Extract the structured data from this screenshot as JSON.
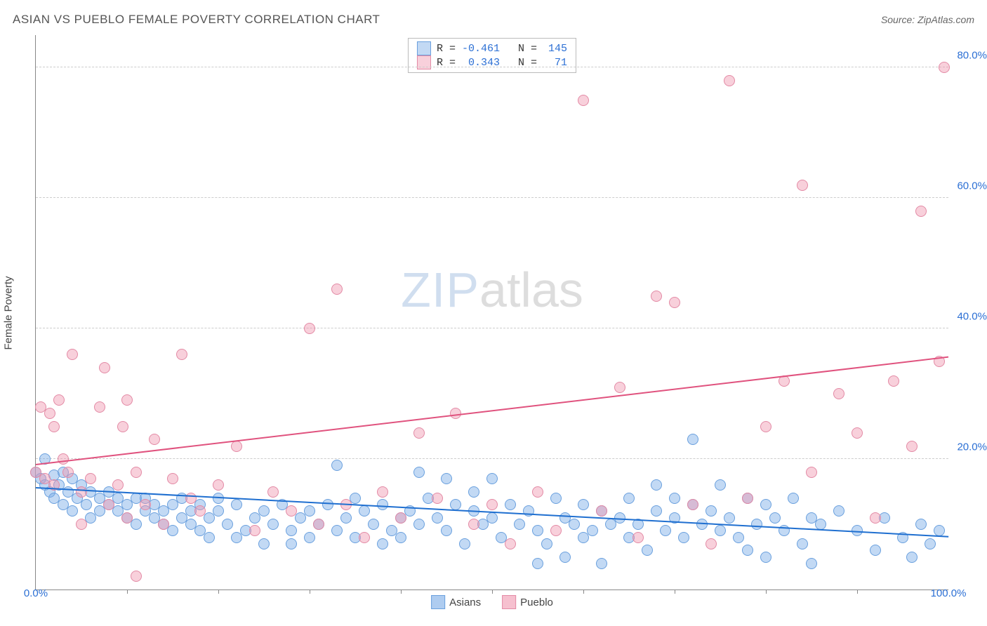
{
  "title": "ASIAN VS PUEBLO FEMALE POVERTY CORRELATION CHART",
  "source": "Source: ZipAtlas.com",
  "watermark": {
    "zip": "ZIP",
    "atlas": "atlas"
  },
  "chart": {
    "type": "scatter",
    "ylabel": "Female Poverty",
    "xlim": [
      0,
      100
    ],
    "ylim": [
      0,
      85
    ],
    "xticks": {
      "min_label": "0.0%",
      "max_label": "100.0%",
      "minor_step": 10
    },
    "yticks": [
      {
        "v": 20,
        "label": "20.0%"
      },
      {
        "v": 40,
        "label": "40.0%"
      },
      {
        "v": 60,
        "label": "60.0%"
      },
      {
        "v": 80,
        "label": "80.0%"
      }
    ],
    "ylabel_color": "#2b6fd4",
    "xlabel_color": "#2b6fd4",
    "grid_color": "#cccccc",
    "axis_color": "#888888",
    "background_color": "#ffffff",
    "marker_radius": 8,
    "marker_border_width": 1.5,
    "series": [
      {
        "name": "Asians",
        "fill": "rgba(120,170,230,0.45)",
        "stroke": "#6aa0de",
        "trend_color": "#1f6fd0",
        "trend": {
          "x1": 0,
          "y1": 15.5,
          "x2": 100,
          "y2": 8.0
        },
        "R": "-0.461",
        "N": "145",
        "points": [
          [
            0,
            18
          ],
          [
            0.5,
            17
          ],
          [
            1,
            20
          ],
          [
            1,
            16
          ],
          [
            1.5,
            15
          ],
          [
            2,
            17.5
          ],
          [
            2,
            14
          ],
          [
            2.5,
            16
          ],
          [
            3,
            18
          ],
          [
            3,
            13
          ],
          [
            3.5,
            15
          ],
          [
            4,
            17
          ],
          [
            4,
            12
          ],
          [
            4.5,
            14
          ],
          [
            5,
            16
          ],
          [
            5.5,
            13
          ],
          [
            6,
            15
          ],
          [
            6,
            11
          ],
          [
            7,
            14
          ],
          [
            7,
            12
          ],
          [
            8,
            13
          ],
          [
            8,
            15
          ],
          [
            9,
            12
          ],
          [
            9,
            14
          ],
          [
            10,
            11
          ],
          [
            10,
            13
          ],
          [
            11,
            14
          ],
          [
            11,
            10
          ],
          [
            12,
            12
          ],
          [
            12,
            14
          ],
          [
            13,
            11
          ],
          [
            13,
            13
          ],
          [
            14,
            10
          ],
          [
            14,
            12
          ],
          [
            15,
            13
          ],
          [
            15,
            9
          ],
          [
            16,
            11
          ],
          [
            16,
            14
          ],
          [
            17,
            10
          ],
          [
            17,
            12
          ],
          [
            18,
            13
          ],
          [
            18,
            9
          ],
          [
            19,
            11
          ],
          [
            19,
            8
          ],
          [
            20,
            12
          ],
          [
            20,
            14
          ],
          [
            21,
            10
          ],
          [
            22,
            13
          ],
          [
            22,
            8
          ],
          [
            23,
            9
          ],
          [
            24,
            11
          ],
          [
            25,
            7
          ],
          [
            25,
            12
          ],
          [
            26,
            10
          ],
          [
            27,
            13
          ],
          [
            28,
            9
          ],
          [
            28,
            7
          ],
          [
            29,
            11
          ],
          [
            30,
            8
          ],
          [
            30,
            12
          ],
          [
            31,
            10
          ],
          [
            32,
            13
          ],
          [
            33,
            9
          ],
          [
            33,
            19
          ],
          [
            34,
            11
          ],
          [
            35,
            8
          ],
          [
            35,
            14
          ],
          [
            36,
            12
          ],
          [
            37,
            10
          ],
          [
            38,
            7
          ],
          [
            38,
            13
          ],
          [
            39,
            9
          ],
          [
            40,
            11
          ],
          [
            40,
            8
          ],
          [
            41,
            12
          ],
          [
            42,
            10
          ],
          [
            42,
            18
          ],
          [
            43,
            14
          ],
          [
            44,
            11
          ],
          [
            45,
            9
          ],
          [
            45,
            17
          ],
          [
            46,
            13
          ],
          [
            47,
            7
          ],
          [
            48,
            12
          ],
          [
            48,
            15
          ],
          [
            49,
            10
          ],
          [
            50,
            11
          ],
          [
            50,
            17
          ],
          [
            51,
            8
          ],
          [
            52,
            13
          ],
          [
            53,
            10
          ],
          [
            54,
            12
          ],
          [
            55,
            4
          ],
          [
            55,
            9
          ],
          [
            56,
            7
          ],
          [
            57,
            14
          ],
          [
            58,
            5
          ],
          [
            58,
            11
          ],
          [
            59,
            10
          ],
          [
            60,
            8
          ],
          [
            60,
            13
          ],
          [
            61,
            9
          ],
          [
            62,
            12
          ],
          [
            62,
            4
          ],
          [
            63,
            10
          ],
          [
            64,
            11
          ],
          [
            65,
            8
          ],
          [
            65,
            14
          ],
          [
            66,
            10
          ],
          [
            67,
            6
          ],
          [
            68,
            12
          ],
          [
            68,
            16
          ],
          [
            69,
            9
          ],
          [
            70,
            11
          ],
          [
            70,
            14
          ],
          [
            71,
            8
          ],
          [
            72,
            13
          ],
          [
            72,
            23
          ],
          [
            73,
            10
          ],
          [
            74,
            12
          ],
          [
            75,
            9
          ],
          [
            75,
            16
          ],
          [
            76,
            11
          ],
          [
            77,
            8
          ],
          [
            78,
            14
          ],
          [
            78,
            6
          ],
          [
            79,
            10
          ],
          [
            80,
            13
          ],
          [
            80,
            5
          ],
          [
            81,
            11
          ],
          [
            82,
            9
          ],
          [
            83,
            14
          ],
          [
            84,
            7
          ],
          [
            85,
            11
          ],
          [
            85,
            4
          ],
          [
            86,
            10
          ],
          [
            88,
            12
          ],
          [
            90,
            9
          ],
          [
            92,
            6
          ],
          [
            93,
            11
          ],
          [
            95,
            8
          ],
          [
            96,
            5
          ],
          [
            97,
            10
          ],
          [
            98,
            7
          ],
          [
            99,
            9
          ]
        ]
      },
      {
        "name": "Pueblo",
        "fill": "rgba(240,150,175,0.45)",
        "stroke": "#e38aa5",
        "trend_color": "#e0527e",
        "trend": {
          "x1": 0,
          "y1": 19.0,
          "x2": 100,
          "y2": 35.5
        },
        "R": "0.343",
        "N": "71",
        "points": [
          [
            0,
            18
          ],
          [
            0.5,
            28
          ],
          [
            1,
            17
          ],
          [
            1.5,
            27
          ],
          [
            2,
            25
          ],
          [
            2,
            16
          ],
          [
            2.5,
            29
          ],
          [
            3,
            20
          ],
          [
            3.5,
            18
          ],
          [
            4,
            36
          ],
          [
            5,
            15
          ],
          [
            5,
            10
          ],
          [
            6,
            17
          ],
          [
            7,
            28
          ],
          [
            7.5,
            34
          ],
          [
            8,
            13
          ],
          [
            9,
            16
          ],
          [
            9.5,
            25
          ],
          [
            10,
            29
          ],
          [
            10,
            11
          ],
          [
            11,
            2
          ],
          [
            11,
            18
          ],
          [
            12,
            13
          ],
          [
            13,
            23
          ],
          [
            14,
            10
          ],
          [
            15,
            17
          ],
          [
            16,
            36
          ],
          [
            17,
            14
          ],
          [
            18,
            12
          ],
          [
            20,
            16
          ],
          [
            22,
            22
          ],
          [
            24,
            9
          ],
          [
            26,
            15
          ],
          [
            28,
            12
          ],
          [
            30,
            40
          ],
          [
            31,
            10
          ],
          [
            33,
            46
          ],
          [
            34,
            13
          ],
          [
            36,
            8
          ],
          [
            38,
            15
          ],
          [
            40,
            11
          ],
          [
            42,
            24
          ],
          [
            44,
            14
          ],
          [
            46,
            27
          ],
          [
            48,
            10
          ],
          [
            50,
            13
          ],
          [
            52,
            7
          ],
          [
            55,
            15
          ],
          [
            57,
            9
          ],
          [
            60,
            75
          ],
          [
            62,
            12
          ],
          [
            64,
            31
          ],
          [
            66,
            8
          ],
          [
            68,
            45
          ],
          [
            70,
            44
          ],
          [
            72,
            13
          ],
          [
            74,
            7
          ],
          [
            76,
            78
          ],
          [
            78,
            14
          ],
          [
            80,
            25
          ],
          [
            82,
            32
          ],
          [
            84,
            62
          ],
          [
            85,
            18
          ],
          [
            88,
            30
          ],
          [
            90,
            24
          ],
          [
            92,
            11
          ],
          [
            94,
            32
          ],
          [
            96,
            22
          ],
          [
            97,
            58
          ],
          [
            99,
            35
          ],
          [
            99.5,
            80
          ]
        ]
      }
    ],
    "bottom_legend": [
      {
        "label": "Asians",
        "fill": "rgba(120,170,230,0.6)",
        "stroke": "#6aa0de"
      },
      {
        "label": "Pueblo",
        "fill": "rgba(240,150,175,0.6)",
        "stroke": "#e38aa5"
      }
    ]
  }
}
